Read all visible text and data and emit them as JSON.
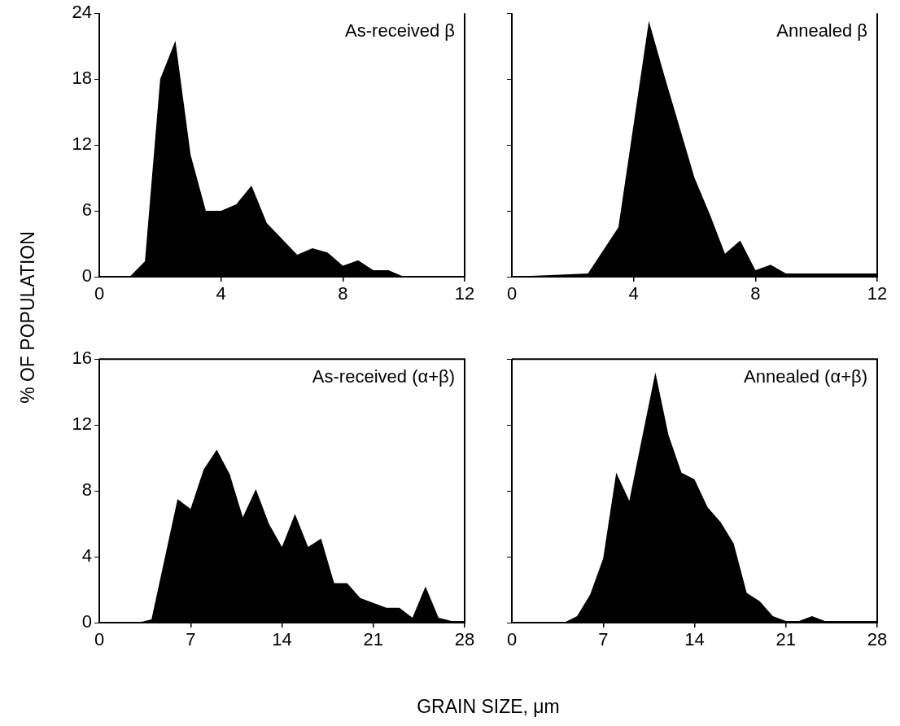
{
  "chart_data": [
    {
      "type": "area",
      "ylabel": "% OF POPULATION",
      "annotations": [
        "As-received β"
      ],
      "color": "#000000",
      "x": [
        0,
        1,
        1.5,
        2,
        2.5,
        3,
        3.5,
        4,
        4.5,
        5,
        5.5,
        6.5,
        7,
        7.5,
        8,
        8.5,
        9,
        9.5,
        10,
        12
      ],
      "values": [
        0,
        0,
        1.4,
        18,
        21.5,
        11.1,
        6,
        6,
        6.6,
        8.3,
        4.9,
        2,
        2.6,
        2.2,
        1,
        1.5,
        0.6,
        0.6,
        0,
        0
      ],
      "xlim": [
        0,
        12
      ],
      "xticks": [
        0,
        4,
        8,
        12
      ],
      "ylim": [
        0,
        24
      ],
      "yticks": [
        0,
        6,
        12,
        18,
        24
      ]
    },
    {
      "type": "area",
      "annotations": [
        "Annealed β"
      ],
      "color": "#000000",
      "x": [
        0,
        2.5,
        3.5,
        4.5,
        5,
        6,
        6.5,
        7,
        7.5,
        8,
        8.5,
        9,
        12
      ],
      "values": [
        0,
        0.3,
        4.5,
        23.3,
        18.4,
        9,
        5.7,
        2.1,
        3.3,
        0.6,
        1.1,
        0.3,
        0.3
      ],
      "xlim": [
        0,
        12
      ],
      "xticks": [
        0,
        4,
        8,
        12
      ],
      "ylim": [
        0,
        24
      ],
      "yticks": [
        0,
        6,
        12,
        18,
        24
      ],
      "tick_labels": "x"
    },
    {
      "type": "area",
      "xlabel": "GRAIN SIZE, μm",
      "annotations": [
        "As-received (α+β)"
      ],
      "color": "#000000",
      "x": [
        0,
        3,
        4,
        6,
        7,
        8,
        9,
        10,
        11,
        12,
        13,
        14,
        15,
        16,
        17,
        18,
        19,
        20,
        21,
        22,
        23,
        24,
        25,
        26,
        27,
        28
      ],
      "values": [
        0,
        0,
        0.2,
        7.5,
        6.9,
        9.3,
        10.5,
        9,
        6.4,
        8.1,
        6,
        4.6,
        6.6,
        4.6,
        5.1,
        2.4,
        2.4,
        1.5,
        1.2,
        0.9,
        0.9,
        0.3,
        2.2,
        0.3,
        0.1,
        0.1
      ],
      "xlim": [
        0,
        28
      ],
      "xticks": [
        0,
        7,
        14,
        21,
        28
      ],
      "ylim": [
        0,
        16
      ],
      "yticks": [
        0,
        4,
        8,
        12,
        16
      ]
    },
    {
      "type": "area",
      "annotations": [
        "Annealed (α+β)"
      ],
      "color": "#000000",
      "x": [
        0,
        4,
        5,
        6,
        7,
        8,
        9,
        11,
        12,
        13,
        14,
        15,
        16,
        17,
        18,
        19,
        20,
        21,
        22,
        23,
        24,
        28
      ],
      "values": [
        0,
        0,
        0.4,
        1.7,
        3.9,
        9.1,
        7.4,
        15.2,
        11.4,
        9.1,
        8.7,
        7,
        6.1,
        4.8,
        1.8,
        1.3,
        0.4,
        0.1,
        0.1,
        0.4,
        0.1,
        0.1
      ],
      "xlim": [
        0,
        28
      ],
      "xticks": [
        0,
        7,
        14,
        21,
        28
      ],
      "ylim": [
        0,
        16
      ],
      "yticks": [
        0,
        4,
        8,
        12,
        16
      ],
      "tick_labels": "x"
    }
  ]
}
